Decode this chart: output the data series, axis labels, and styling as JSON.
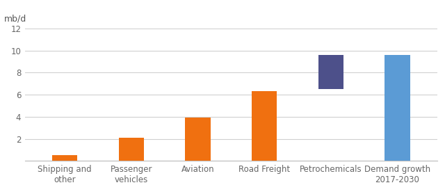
{
  "categories": [
    "Shipping and\nother",
    "Passenger\nvehicles",
    "Aviation",
    "Road Freight",
    "Petrochemicals",
    "Demand growth\n2017-2030"
  ],
  "bar_bottoms": [
    0,
    0,
    0,
    0,
    6.5,
    0
  ],
  "bar_heights": [
    0.5,
    2.1,
    3.9,
    6.3,
    3.1,
    9.6
  ],
  "bar_colors": [
    "#f07010",
    "#f07010",
    "#f07010",
    "#f07010",
    "#4d508a",
    "#5b9bd5"
  ],
  "ylabel": "mb/d",
  "ylim": [
    0,
    12
  ],
  "yticks": [
    0,
    2,
    4,
    6,
    8,
    10,
    12
  ],
  "background_color": "#ffffff",
  "grid_color": "#d0d0d0",
  "bar_width": 0.38,
  "label_fontsize": 8.5,
  "ylabel_fontsize": 9
}
